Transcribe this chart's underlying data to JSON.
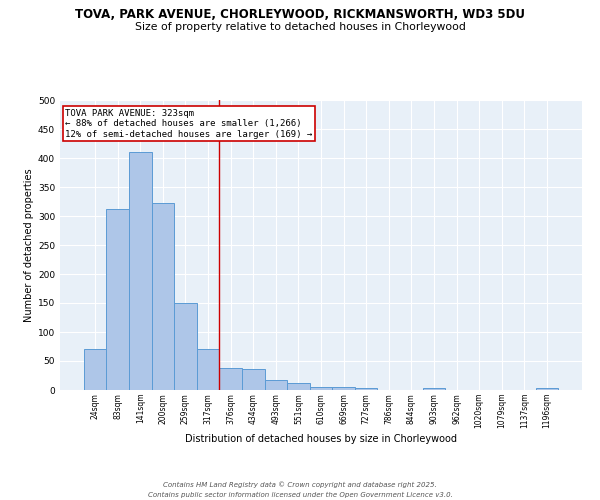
{
  "title": "TOVA, PARK AVENUE, CHORLEYWOOD, RICKMANSWORTH, WD3 5DU",
  "subtitle": "Size of property relative to detached houses in Chorleywood",
  "xlabel": "Distribution of detached houses by size in Chorleywood",
  "ylabel": "Number of detached properties",
  "bar_labels": [
    "24sqm",
    "83sqm",
    "141sqm",
    "200sqm",
    "259sqm",
    "317sqm",
    "376sqm",
    "434sqm",
    "493sqm",
    "551sqm",
    "610sqm",
    "669sqm",
    "727sqm",
    "786sqm",
    "844sqm",
    "903sqm",
    "962sqm",
    "1020sqm",
    "1079sqm",
    "1137sqm",
    "1196sqm"
  ],
  "bar_values": [
    70,
    312,
    410,
    323,
    150,
    70,
    38,
    36,
    18,
    12,
    6,
    5,
    4,
    0,
    0,
    3,
    0,
    0,
    0,
    0,
    3
  ],
  "bar_color": "#aec6e8",
  "bar_edge_color": "#5b9bd5",
  "vline_x": 5.5,
  "vline_color": "#cc0000",
  "annotation_line1": "TOVA PARK AVENUE: 323sqm",
  "annotation_line2": "← 88% of detached houses are smaller (1,266)",
  "annotation_line3": "12% of semi-detached houses are larger (169) →",
  "annotation_box_color": "white",
  "annotation_box_edge": "#cc0000",
  "ylim": [
    0,
    500
  ],
  "yticks": [
    0,
    50,
    100,
    150,
    200,
    250,
    300,
    350,
    400,
    450,
    500
  ],
  "bg_color": "#e8f0f8",
  "footer_line1": "Contains HM Land Registry data © Crown copyright and database right 2025.",
  "footer_line2": "Contains public sector information licensed under the Open Government Licence v3.0."
}
